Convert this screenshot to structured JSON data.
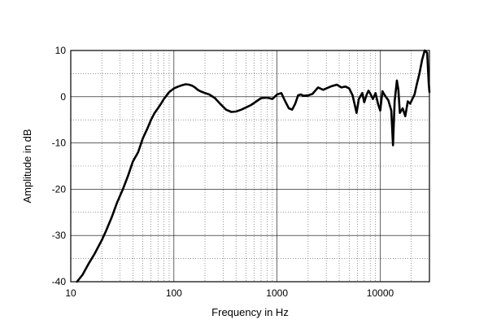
{
  "chart_data": {
    "type": "line",
    "title": "",
    "xlabel": "Frequency in Hz",
    "ylabel": "Amplitude in dB",
    "x_scale": "log",
    "xlim": [
      10,
      30000
    ],
    "ylim": [
      -40,
      10
    ],
    "grid": true,
    "legend": "none",
    "line_color": "#000000",
    "x_ticks": [
      {
        "value": 10,
        "label": "10"
      },
      {
        "value": 100,
        "label": "100"
      },
      {
        "value": 1000,
        "label": "1000"
      },
      {
        "value": 10000,
        "label": "10000"
      }
    ],
    "y_ticks": [
      {
        "value": 10,
        "label": "10"
      },
      {
        "value": 0,
        "label": "0"
      },
      {
        "value": -10,
        "label": "-10"
      },
      {
        "value": -20,
        "label": "-20"
      },
      {
        "value": -30,
        "label": "-30"
      },
      {
        "value": -40,
        "label": "-40"
      }
    ],
    "series": [
      {
        "x": [
          11.5,
          13,
          15,
          17,
          20,
          22,
          25,
          28,
          32,
          36,
          40,
          45,
          50,
          55,
          60,
          65,
          70,
          75,
          80,
          90,
          100,
          110,
          120,
          130,
          140,
          150,
          160,
          170,
          180,
          200,
          220,
          250,
          280,
          320,
          360,
          400,
          450,
          500,
          560,
          630,
          700,
          800,
          900,
          1000,
          1100,
          1200,
          1300,
          1400,
          1500,
          1600,
          1700,
          1800,
          2000,
          2200,
          2500,
          2800,
          3000,
          3400,
          3800,
          4200,
          4600,
          5000,
          5400,
          5700,
          5900,
          6200,
          6700,
          7000,
          7400,
          7700,
          8000,
          8500,
          9000,
          9500,
          10000,
          10500,
          11000,
          12000,
          12800,
          13300,
          13800,
          14500,
          15000,
          15500,
          16500,
          17500,
          18500,
          19500,
          20500,
          21500,
          22500,
          24000,
          25500,
          27000,
          28500,
          29500,
          30000
        ],
        "y": [
          -40,
          -38.5,
          -36,
          -34,
          -31,
          -29,
          -26,
          -23,
          -20,
          -17,
          -14,
          -12,
          -9,
          -7,
          -5,
          -3.5,
          -2.5,
          -1.5,
          -0.5,
          1,
          1.8,
          2.2,
          2.5,
          2.7,
          2.6,
          2.4,
          2,
          1.5,
          1.2,
          0.8,
          0.5,
          -0.3,
          -1.5,
          -2.8,
          -3.3,
          -3.2,
          -2.8,
          -2.3,
          -1.8,
          -1,
          -0.3,
          -0.2,
          -0.5,
          0.5,
          0.8,
          -1,
          -2.5,
          -2.8,
          -1.5,
          0.3,
          0.5,
          0.2,
          0.3,
          0.6,
          2,
          1.5,
          1.8,
          2.3,
          2.6,
          2,
          2.2,
          1.8,
          0.3,
          -2,
          -3.5,
          -0.5,
          0.8,
          -1.2,
          0.5,
          1.3,
          0.7,
          -0.5,
          0.8,
          -1.5,
          -3,
          1.2,
          0.4,
          -0.8,
          -3,
          -10.5,
          -1,
          3.5,
          1.5,
          -3.5,
          -2.5,
          -4.2,
          -1,
          -1.5,
          -0.5,
          0.5,
          2.5,
          5,
          8,
          10,
          9.5,
          3,
          1
        ]
      }
    ]
  }
}
